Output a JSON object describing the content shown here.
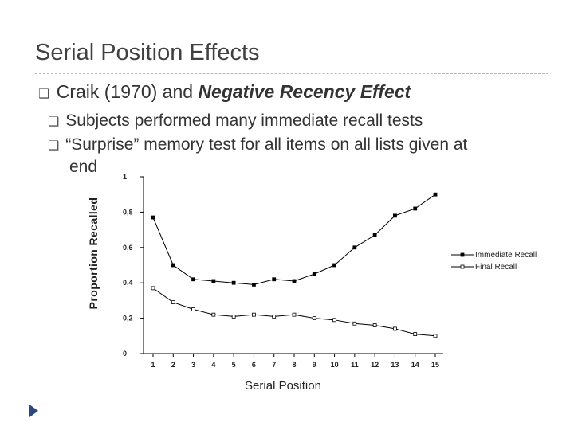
{
  "slide": {
    "title": "Serial Position Effects",
    "bullet_main": {
      "plain": "Craik (1970) and ",
      "emph": "Negative Recency Effect"
    },
    "sub_bullets": [
      "Subjects performed many immediate recall tests",
      "“Surprise” memory test for all items on all lists given at"
    ],
    "sub_bullet_cont": "end",
    "bullet_glyph": "❑"
  },
  "chart_data": {
    "type": "line",
    "x": [
      1,
      2,
      3,
      4,
      5,
      6,
      7,
      8,
      9,
      10,
      11,
      12,
      13,
      14,
      15
    ],
    "x_tick_labels": [
      "1",
      "2",
      "3",
      "4",
      "5",
      "6",
      "7",
      "8",
      "9",
      "10",
      "11",
      "12",
      "13",
      "14",
      "15"
    ],
    "series": [
      {
        "name": "Immediate Recall",
        "marker": "filled-square",
        "values": [
          0.77,
          0.5,
          0.42,
          0.41,
          0.4,
          0.39,
          0.42,
          0.41,
          0.45,
          0.5,
          0.6,
          0.67,
          0.78,
          0.82,
          0.9
        ]
      },
      {
        "name": "Final Recall",
        "marker": "hollow-square",
        "values": [
          0.37,
          0.29,
          0.25,
          0.22,
          0.21,
          0.22,
          0.21,
          0.22,
          0.2,
          0.19,
          0.17,
          0.16,
          0.14,
          0.11,
          0.1
        ]
      }
    ],
    "ylim": [
      0,
      1
    ],
    "y_ticks": [
      0,
      0.2,
      0.4,
      0.6,
      0.8,
      1
    ],
    "y_tick_labels": [
      "0",
      "0,2",
      "0,4",
      "0,6",
      "0,8",
      "1"
    ],
    "xlabel": "Serial Position",
    "ylabel": "Proportion Recalled",
    "legend": "right",
    "grid": false,
    "line_color": "#000000"
  }
}
